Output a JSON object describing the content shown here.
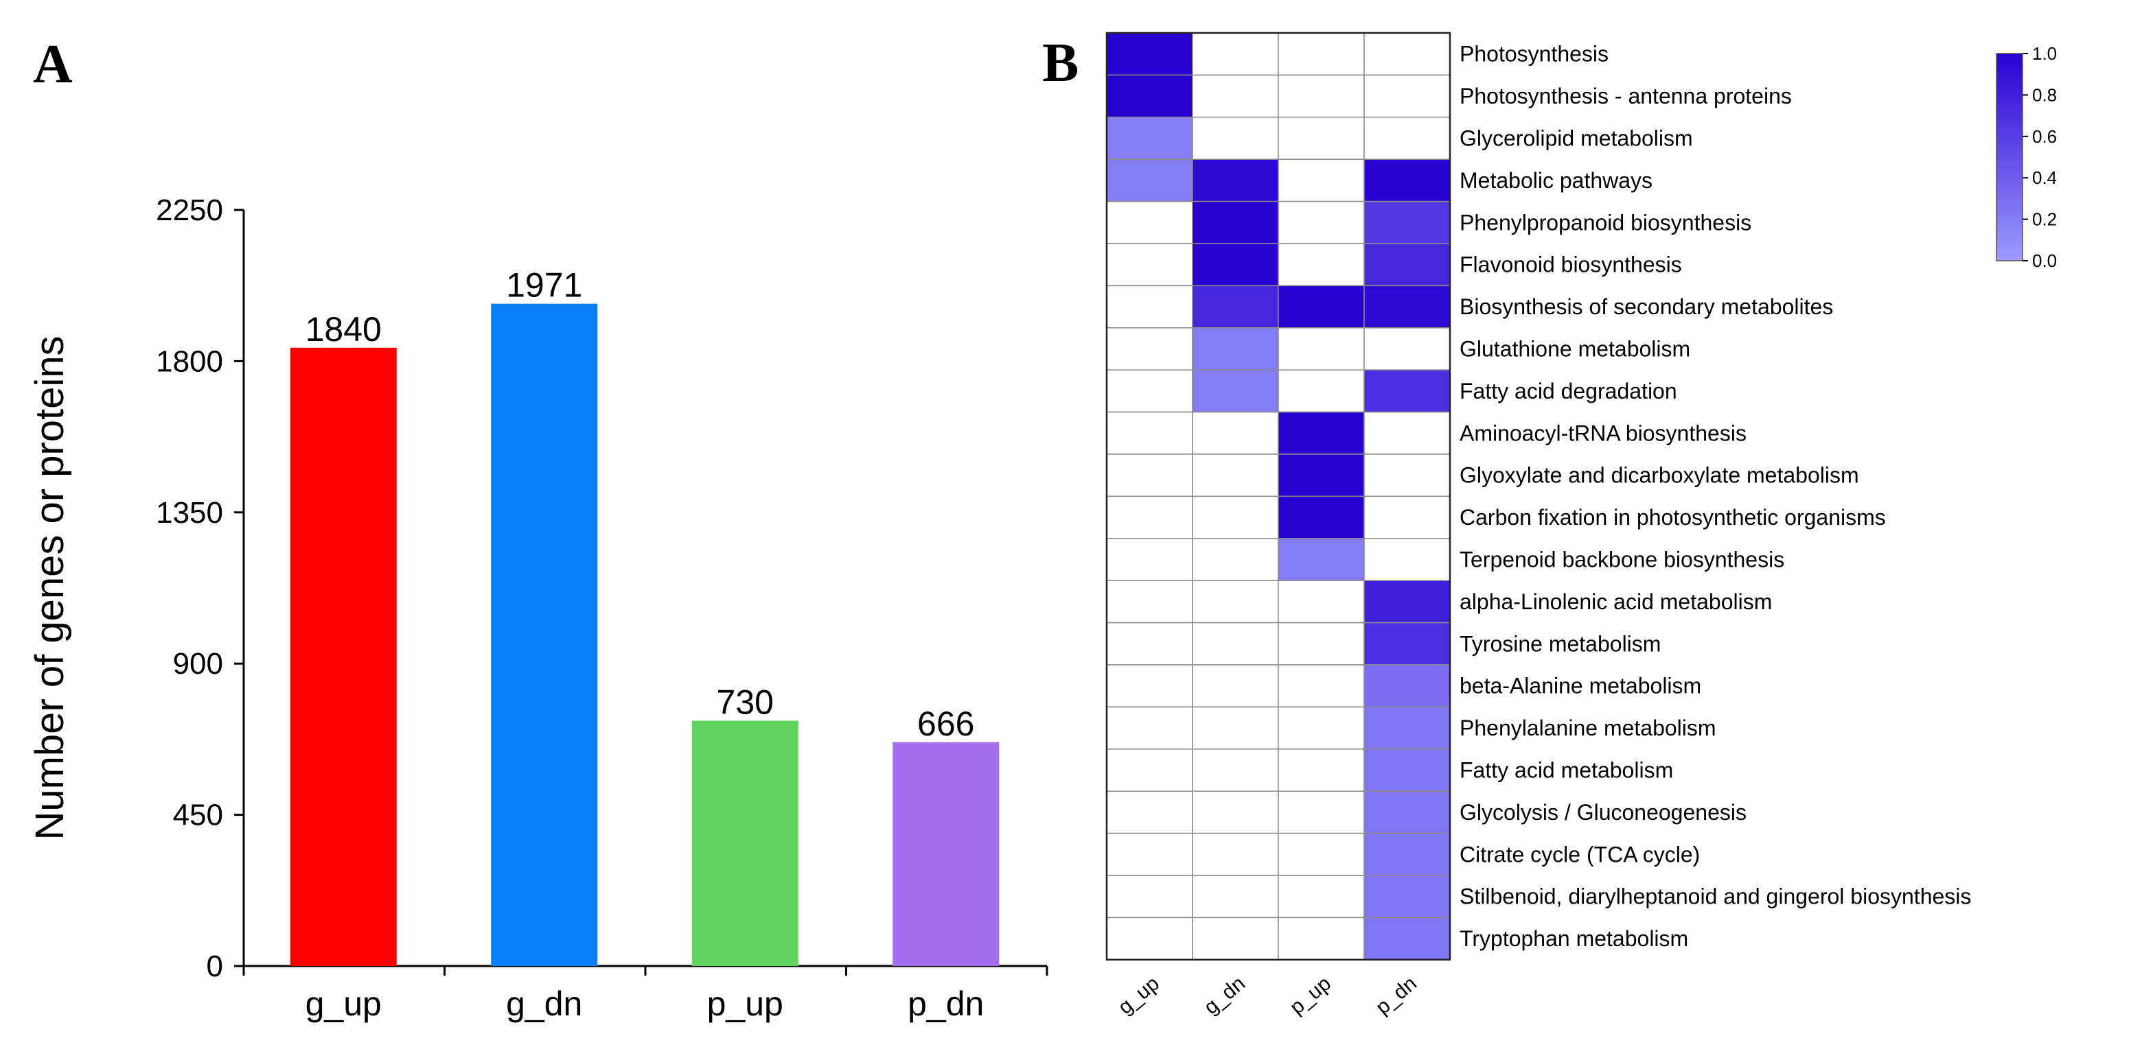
{
  "chart_data": [
    {
      "panel": "A",
      "type": "bar",
      "title": "",
      "xlabel": "",
      "ylabel": "Number of genes or proteins",
      "ylim": [
        0,
        2250
      ],
      "yticks": [
        0,
        450,
        900,
        1350,
        1800,
        2250
      ],
      "categories": [
        "g_up",
        "g_dn",
        "p_up",
        "p_dn"
      ],
      "values": [
        1840,
        1971,
        730,
        666
      ],
      "colors": [
        "#ff0000",
        "#0a7ff5",
        "#62d25f",
        "#a46ded"
      ],
      "data_labels": [
        "1840",
        "1971",
        "730",
        "666"
      ],
      "grid": false
    },
    {
      "panel": "B",
      "type": "heatmap",
      "columns": [
        "g_up",
        "g_dn",
        "p_up",
        "p_dn"
      ],
      "rows": [
        "Photosynthesis",
        "Photosynthesis - antenna proteins",
        "Glycerolipid metabolism",
        "Metabolic pathways",
        "Phenylpropanoid biosynthesis",
        "Flavonoid biosynthesis",
        "Biosynthesis of secondary metabolites",
        "Glutathione metabolism",
        "Fatty acid degradation",
        "Aminoacyl-tRNA biosynthesis",
        "Glyoxylate and dicarboxylate metabolism",
        "Carbon fixation in photosynthetic organisms",
        "Terpenoid backbone biosynthesis",
        "alpha-Linolenic acid metabolism",
        "Tyrosine metabolism",
        "beta-Alanine metabolism",
        "Phenylalanine metabolism",
        "Fatty acid metabolism",
        "Glycolysis / Gluconeogenesis",
        "Citrate cycle (TCA cycle)",
        "Stilbenoid, diarylheptanoid and gingerol biosynthesis",
        "Tryptophan metabolism"
      ],
      "values": [
        [
          1.0,
          null,
          null,
          null
        ],
        [
          1.0,
          null,
          null,
          null
        ],
        [
          0.2,
          null,
          null,
          null
        ],
        [
          0.2,
          0.95,
          null,
          1.0
        ],
        [
          null,
          1.0,
          null,
          0.65
        ],
        [
          null,
          1.0,
          null,
          0.75
        ],
        [
          null,
          0.75,
          1.0,
          0.95
        ],
        [
          null,
          0.2,
          null,
          null
        ],
        [
          null,
          0.2,
          null,
          0.7
        ],
        [
          null,
          null,
          1.0,
          null
        ],
        [
          null,
          null,
          1.0,
          null
        ],
        [
          null,
          null,
          1.0,
          null
        ],
        [
          null,
          null,
          0.2,
          null
        ],
        [
          null,
          null,
          null,
          0.8
        ],
        [
          null,
          null,
          null,
          0.7
        ],
        [
          null,
          null,
          null,
          0.3
        ],
        [
          null,
          null,
          null,
          0.25
        ],
        [
          null,
          null,
          null,
          0.25
        ],
        [
          null,
          null,
          null,
          0.25
        ],
        [
          null,
          null,
          null,
          0.25
        ],
        [
          null,
          null,
          null,
          0.25
        ],
        [
          null,
          null,
          null,
          0.25
        ]
      ],
      "color_low": "#9c9cff",
      "color_high": "#2a00d2",
      "colorbar": {
        "range": [
          0.0,
          1.0
        ],
        "ticks": [
          "0.0",
          "0.2",
          "0.4",
          "0.6",
          "0.8",
          "1.0"
        ]
      }
    }
  ],
  "panels": {
    "a_label": "A",
    "b_label": "B"
  }
}
